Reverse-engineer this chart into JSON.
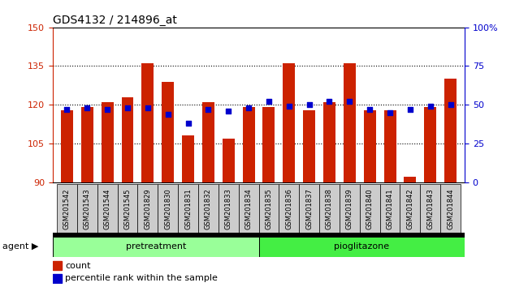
{
  "title": "GDS4132 / 214896_at",
  "samples": [
    "GSM201542",
    "GSM201543",
    "GSM201544",
    "GSM201545",
    "GSM201829",
    "GSM201830",
    "GSM201831",
    "GSM201832",
    "GSM201833",
    "GSM201834",
    "GSM201835",
    "GSM201836",
    "GSM201837",
    "GSM201838",
    "GSM201839",
    "GSM201840",
    "GSM201841",
    "GSM201842",
    "GSM201843",
    "GSM201844"
  ],
  "bar_values": [
    118,
    119,
    121,
    123,
    136,
    129,
    108,
    121,
    107,
    119,
    119,
    136,
    118,
    121,
    136,
    118,
    118,
    92,
    119,
    130
  ],
  "blue_values": [
    47,
    48,
    47,
    48,
    48,
    44,
    38,
    47,
    46,
    48,
    52,
    49,
    50,
    52,
    52,
    47,
    45,
    47,
    49,
    50
  ],
  "ymin": 90,
  "ymax": 150,
  "yticks": [
    90,
    105,
    120,
    135,
    150
  ],
  "y2min": 0,
  "y2max": 100,
  "y2ticks": [
    0,
    25,
    50,
    75,
    100
  ],
  "bar_color": "#cc2200",
  "blue_color": "#0000cc",
  "pretreatment_color": "#99ff99",
  "pioglitazone_color": "#44ee44",
  "tick_bg_color": "#cccccc",
  "ylabel_color": "#cc2200",
  "y2label_color": "#0000cc",
  "bar_width": 0.6,
  "n_pretreatment": 10,
  "n_pioglitazone": 10
}
